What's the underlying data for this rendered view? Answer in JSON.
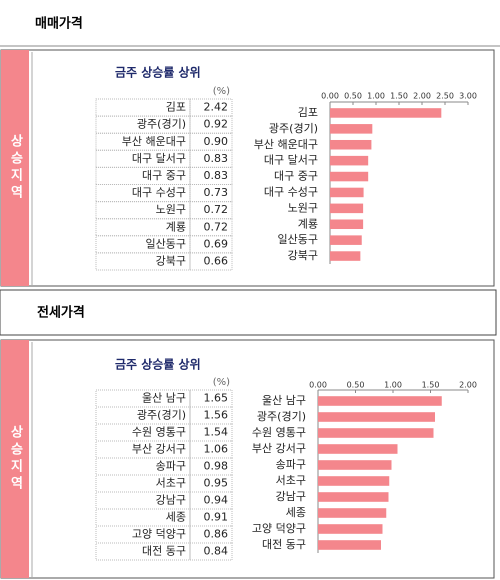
{
  "sections": [
    {
      "header": "매매가격",
      "side_label": "상승지역",
      "table": {
        "title": "금주 상승률 상위",
        "unit": "(%)",
        "rows": [
          [
            "김포",
            "2.42"
          ],
          [
            "광주(경기)",
            "0.92"
          ],
          [
            "부산 해운대구",
            "0.90"
          ],
          [
            "대구 달서구",
            "0.83"
          ],
          [
            "대구 중구",
            "0.83"
          ],
          [
            "대구 수성구",
            "0.73"
          ],
          [
            "노원구",
            "0.72"
          ],
          [
            "계룡",
            "0.72"
          ],
          [
            "일산동구",
            "0.69"
          ],
          [
            "강북구",
            "0.66"
          ]
        ]
      }
    },
    {
      "header": "전세가격",
      "side_label": "상승지역",
      "table": {
        "title": "금주 상승률 상위",
        "unit": "(%)",
        "rows": [
          [
            "울산 남구",
            "1.65"
          ],
          [
            "광주(경기)",
            "1.56"
          ],
          [
            "수원 영통구",
            "1.54"
          ],
          [
            "부산 강서구",
            "1.06"
          ],
          [
            "송파구",
            "0.98"
          ],
          [
            "서초구",
            "0.95"
          ],
          [
            "강남구",
            "0.94"
          ],
          [
            "세종",
            "0.91"
          ],
          [
            "고양 덕양구",
            "0.86"
          ],
          [
            "대전 동구",
            "0.84"
          ]
        ]
      }
    }
  ],
  "chart_data": [
    {
      "type": "bar",
      "orientation": "horizontal",
      "color": "#f4868c",
      "categories": [
        "김포",
        "광주(경기)",
        "부산 해운대구",
        "대구 달서구",
        "대구 중구",
        "대구 수성구",
        "노원구",
        "계룡",
        "일산동구",
        "강북구"
      ],
      "values": [
        2.42,
        0.92,
        0.9,
        0.83,
        0.83,
        0.73,
        0.72,
        0.72,
        0.69,
        0.66
      ],
      "xlim": [
        0,
        3
      ],
      "xticks": [
        {
          "value": 0,
          "label": "0.00"
        },
        {
          "value": 0.5,
          "label": "0.50"
        },
        {
          "value": 1,
          "label": "1.00"
        },
        {
          "value": 1.5,
          "label": "1.50"
        },
        {
          "value": 2,
          "label": "2.00"
        },
        {
          "value": 2.5,
          "label": "2.50"
        },
        {
          "value": 3,
          "label": "3.00"
        }
      ]
    },
    {
      "type": "bar",
      "orientation": "horizontal",
      "color": "#f4868c",
      "categories": [
        "울산 남구",
        "광주(경기)",
        "수원 영통구",
        "부산 강서구",
        "송파구",
        "서초구",
        "강남구",
        "세종",
        "고양 덕양구",
        "대전 동구"
      ],
      "values": [
        1.65,
        1.56,
        1.54,
        1.06,
        0.98,
        0.95,
        0.94,
        0.91,
        0.86,
        0.84
      ],
      "xlim": [
        0,
        2
      ],
      "xticks": [
        {
          "value": 0,
          "label": "0.00"
        },
        {
          "value": 0.5,
          "label": "0.50"
        },
        {
          "value": 1,
          "label": "1.00"
        },
        {
          "value": 1.5,
          "label": "1.50"
        },
        {
          "value": 2,
          "label": "2.00"
        }
      ]
    }
  ]
}
